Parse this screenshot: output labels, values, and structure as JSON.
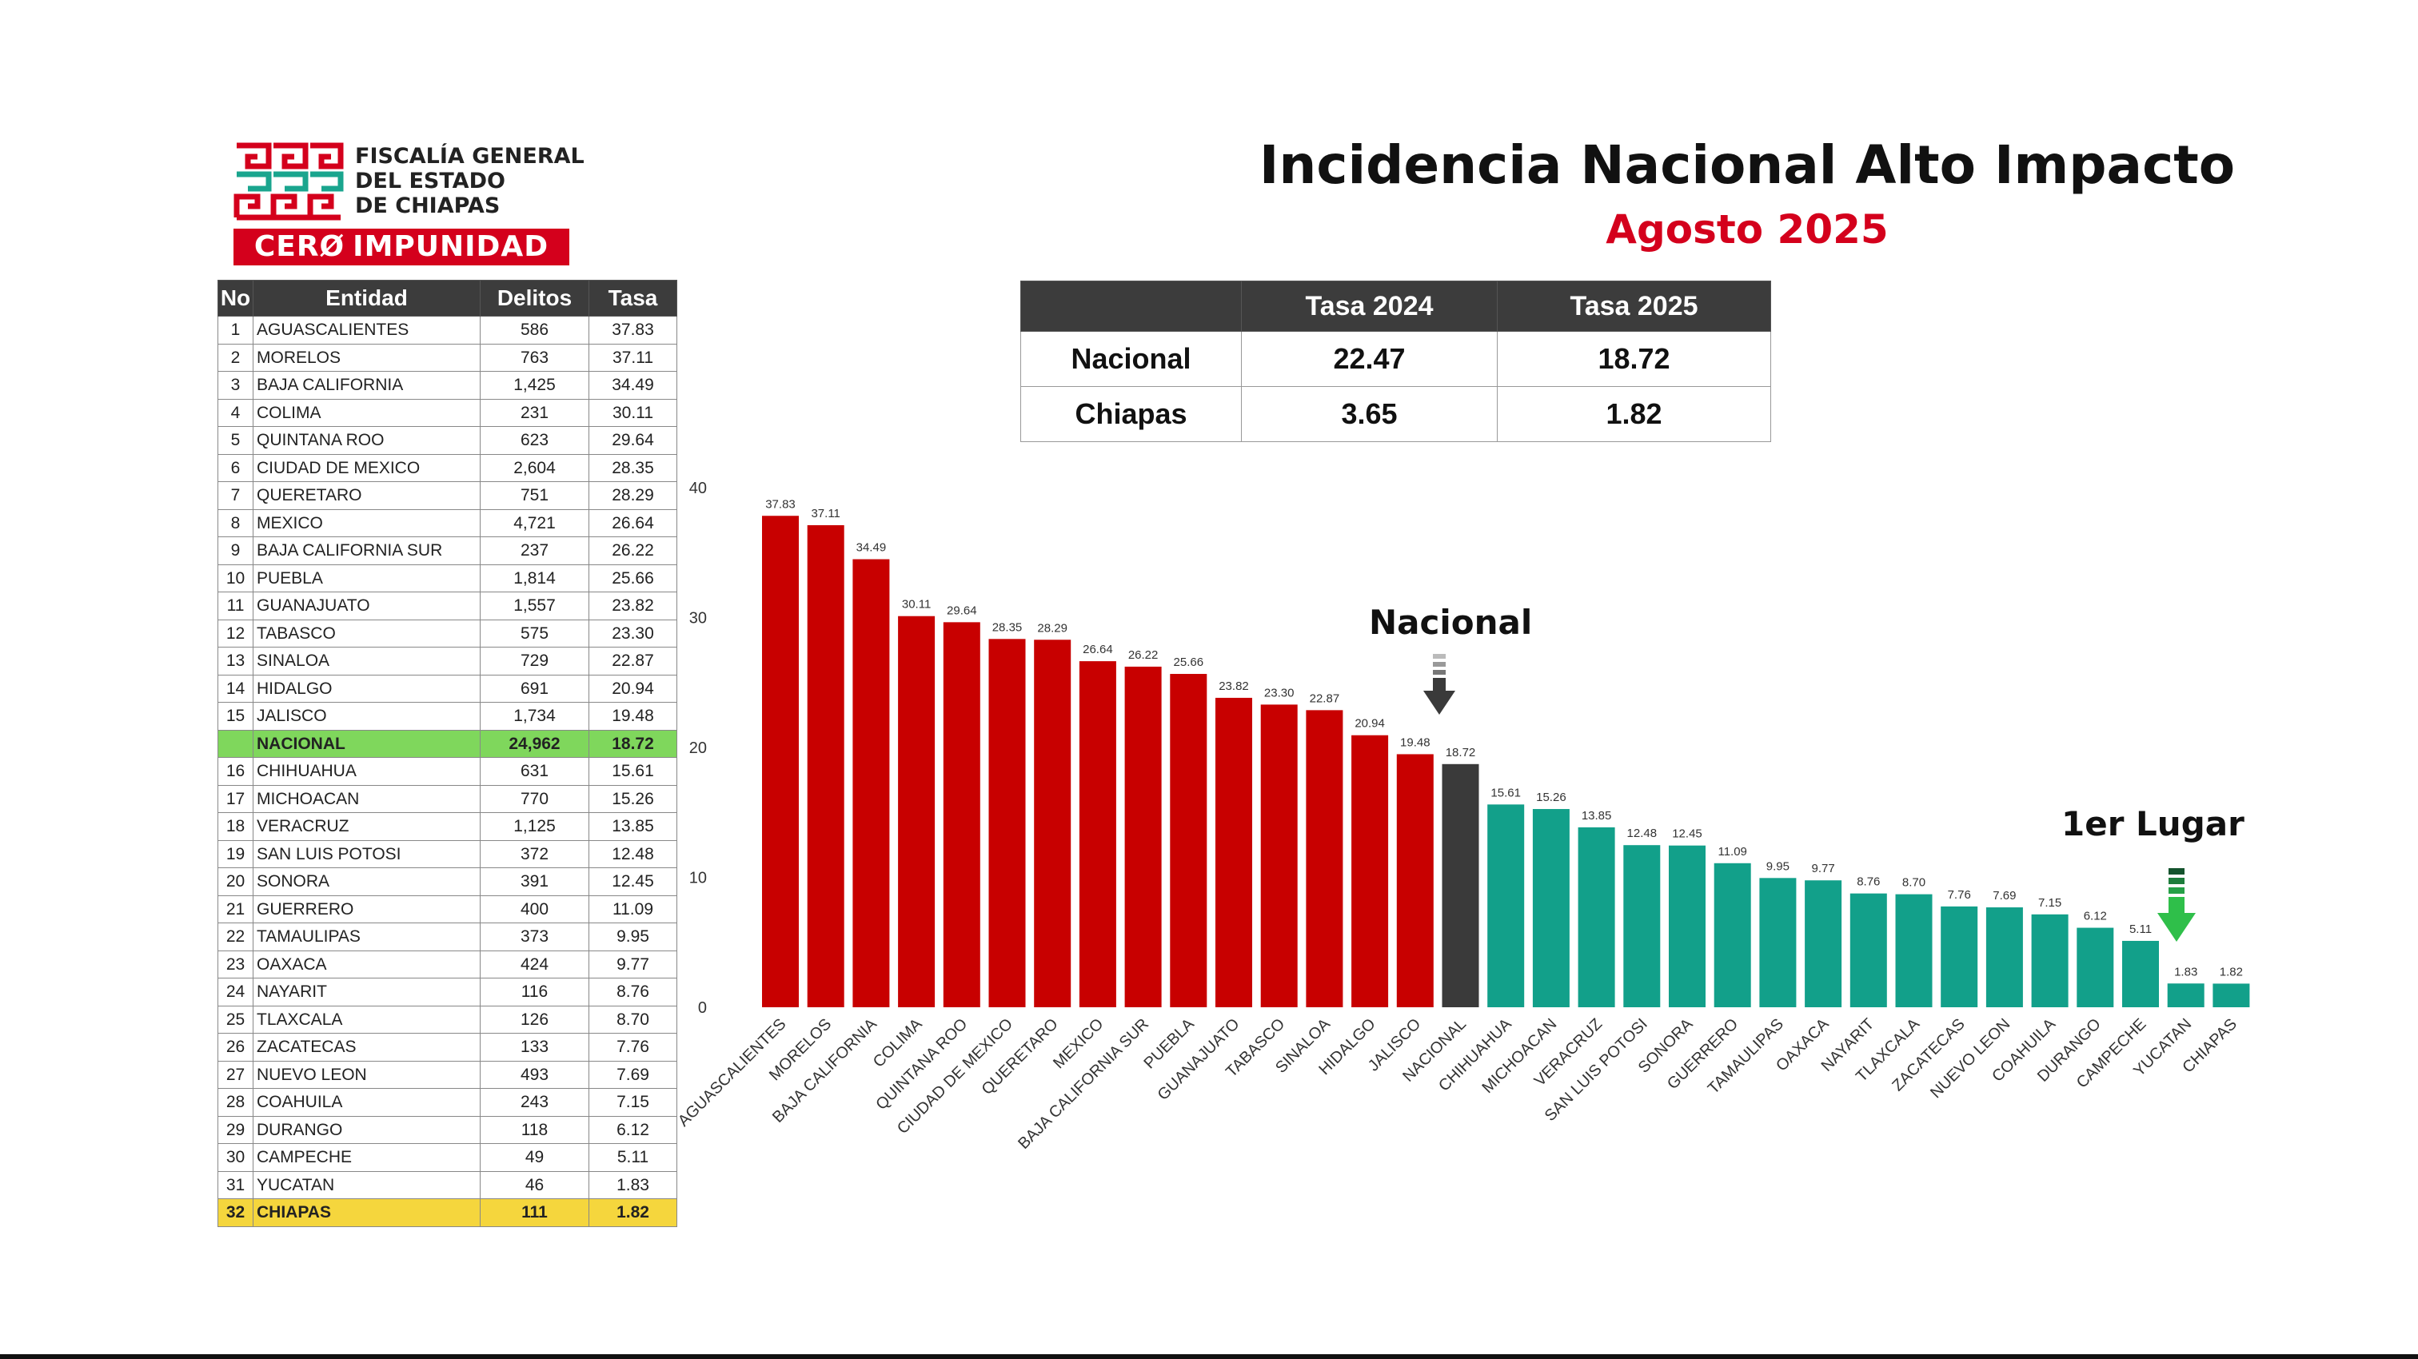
{
  "logo": {
    "line1": "FISCALÍA GENERAL",
    "line2": "DEL ESTADO",
    "line3": "DE CHIAPAS",
    "banner_part1": "CERØ",
    "banner_part2": "IMPUNIDAD"
  },
  "header": {
    "title": "Incidencia Nacional Alto Impacto",
    "subtitle": "Agosto 2025"
  },
  "summary_table": {
    "headers": [
      "",
      "Tasa 2024",
      "Tasa 2025"
    ],
    "rows": [
      {
        "label": "Nacional",
        "tasa2024": "22.47",
        "tasa2025": "18.72"
      },
      {
        "label": "Chiapas",
        "tasa2024": "3.65",
        "tasa2025": "1.82"
      }
    ]
  },
  "ranking_table": {
    "headers": [
      "No",
      "Entidad",
      "Delitos",
      "Tasa"
    ],
    "rows": [
      {
        "no": "1",
        "entidad": "AGUASCALIENTES",
        "delitos": "586",
        "tasa": "37.83"
      },
      {
        "no": "2",
        "entidad": "MORELOS",
        "delitos": "763",
        "tasa": "37.11"
      },
      {
        "no": "3",
        "entidad": "BAJA CALIFORNIA",
        "delitos": "1,425",
        "tasa": "34.49"
      },
      {
        "no": "4",
        "entidad": "COLIMA",
        "delitos": "231",
        "tasa": "30.11"
      },
      {
        "no": "5",
        "entidad": "QUINTANA ROO",
        "delitos": "623",
        "tasa": "29.64"
      },
      {
        "no": "6",
        "entidad": "CIUDAD DE MEXICO",
        "delitos": "2,604",
        "tasa": "28.35"
      },
      {
        "no": "7",
        "entidad": "QUERETARO",
        "delitos": "751",
        "tasa": "28.29"
      },
      {
        "no": "8",
        "entidad": "MEXICO",
        "delitos": "4,721",
        "tasa": "26.64"
      },
      {
        "no": "9",
        "entidad": "BAJA CALIFORNIA SUR",
        "delitos": "237",
        "tasa": "26.22"
      },
      {
        "no": "10",
        "entidad": "PUEBLA",
        "delitos": "1,814",
        "tasa": "25.66"
      },
      {
        "no": "11",
        "entidad": "GUANAJUATO",
        "delitos": "1,557",
        "tasa": "23.82"
      },
      {
        "no": "12",
        "entidad": "TABASCO",
        "delitos": "575",
        "tasa": "23.30"
      },
      {
        "no": "13",
        "entidad": "SINALOA",
        "delitos": "729",
        "tasa": "22.87"
      },
      {
        "no": "14",
        "entidad": "HIDALGO",
        "delitos": "691",
        "tasa": "20.94"
      },
      {
        "no": "15",
        "entidad": "JALISCO",
        "delitos": "1,734",
        "tasa": "19.48"
      },
      {
        "no": "",
        "entidad": "NACIONAL",
        "delitos": "24,962",
        "tasa": "18.72",
        "type": "nacional"
      },
      {
        "no": "16",
        "entidad": "CHIHUAHUA",
        "delitos": "631",
        "tasa": "15.61"
      },
      {
        "no": "17",
        "entidad": "MICHOACAN",
        "delitos": "770",
        "tasa": "15.26"
      },
      {
        "no": "18",
        "entidad": "VERACRUZ",
        "delitos": "1,125",
        "tasa": "13.85"
      },
      {
        "no": "19",
        "entidad": "SAN LUIS POTOSI",
        "delitos": "372",
        "tasa": "12.48"
      },
      {
        "no": "20",
        "entidad": "SONORA",
        "delitos": "391",
        "tasa": "12.45"
      },
      {
        "no": "21",
        "entidad": "GUERRERO",
        "delitos": "400",
        "tasa": "11.09"
      },
      {
        "no": "22",
        "entidad": "TAMAULIPAS",
        "delitos": "373",
        "tasa": "9.95"
      },
      {
        "no": "23",
        "entidad": "OAXACA",
        "delitos": "424",
        "tasa": "9.77"
      },
      {
        "no": "24",
        "entidad": "NAYARIT",
        "delitos": "116",
        "tasa": "8.76"
      },
      {
        "no": "25",
        "entidad": "TLAXCALA",
        "delitos": "126",
        "tasa": "8.70"
      },
      {
        "no": "26",
        "entidad": "ZACATECAS",
        "delitos": "133",
        "tasa": "7.76"
      },
      {
        "no": "27",
        "entidad": "NUEVO LEON",
        "delitos": "493",
        "tasa": "7.69"
      },
      {
        "no": "28",
        "entidad": "COAHUILA",
        "delitos": "243",
        "tasa": "7.15"
      },
      {
        "no": "29",
        "entidad": "DURANGO",
        "delitos": "118",
        "tasa": "6.12"
      },
      {
        "no": "30",
        "entidad": "CAMPECHE",
        "delitos": "49",
        "tasa": "5.11"
      },
      {
        "no": "31",
        "entidad": "YUCATAN",
        "delitos": "46",
        "tasa": "1.83"
      },
      {
        "no": "32",
        "entidad": "CHIAPAS",
        "delitos": "111",
        "tasa": "1.82",
        "type": "chiapas"
      }
    ]
  },
  "annotations": {
    "nacional_label": "Nacional",
    "first_place_label": "1er Lugar"
  },
  "colors": {
    "above_national": "#c80000",
    "national": "#3a3a3a",
    "below_national": "#12a08a",
    "brand_red": "#d4001c",
    "nacional_row": "#7fd75c",
    "chiapas_row": "#f5d63d",
    "first_place_arrow": "#2fbf4a"
  },
  "chart_data": {
    "type": "bar",
    "ylim": [
      0,
      40
    ],
    "yticks": [
      0,
      10,
      20,
      30,
      40
    ],
    "grid": false,
    "categories": [
      "AGUASCALIENTES",
      "MORELOS",
      "BAJA CALIFORNIA",
      "COLIMA",
      "QUINTANA ROO",
      "CIUDAD DE MEXICO",
      "QUERETARO",
      "MEXICO",
      "BAJA CALIFORNIA SUR",
      "PUEBLA",
      "GUANAJUATO",
      "TABASCO",
      "SINALOA",
      "HIDALGO",
      "JALISCO",
      "NACIONAL",
      "CHIHUAHUA",
      "MICHOACAN",
      "VERACRUZ",
      "SAN LUIS POTOSI",
      "SONORA",
      "GUERRERO",
      "TAMAULIPAS",
      "OAXACA",
      "NAYARIT",
      "TLAXCALA",
      "ZACATECAS",
      "NUEVO LEON",
      "COAHUILA",
      "DURANGO",
      "CAMPECHE",
      "YUCATAN",
      "CHIAPAS"
    ],
    "values": [
      37.83,
      37.11,
      34.49,
      30.11,
      29.64,
      28.35,
      28.29,
      26.64,
      26.22,
      25.66,
      23.82,
      23.3,
      22.87,
      20.94,
      19.48,
      18.72,
      15.61,
      15.26,
      13.85,
      12.48,
      12.45,
      11.09,
      9.95,
      9.77,
      8.76,
      8.7,
      7.76,
      7.69,
      7.15,
      6.12,
      5.11,
      1.83,
      1.82
    ],
    "value_labels": [
      "37.83",
      "37.11",
      "34.49",
      "30.11",
      "29.64",
      "28.35",
      "28.29",
      "26.64",
      "26.22",
      "25.66",
      "23.82",
      "23.30",
      "22.87",
      "20.94",
      "19.48",
      "18.72",
      "15.61",
      "15.26",
      "13.85",
      "12.48",
      "12.45",
      "11.09",
      "9.95",
      "9.77",
      "8.76",
      "8.70",
      "7.76",
      "7.69",
      "7.15",
      "6.12",
      "5.11",
      "1.83",
      "1.82"
    ],
    "title": "",
    "xlabel": "",
    "ylabel": ""
  }
}
